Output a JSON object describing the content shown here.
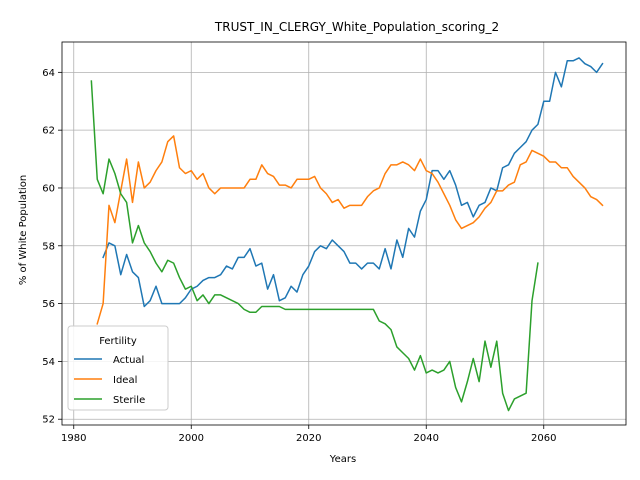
{
  "chart_data": {
    "type": "line",
    "title": "TRUST_IN_CLERGY_White_Population_scoring_2",
    "xlabel": "Years",
    "ylabel": "% of White Population",
    "xlim": [
      1978,
      2074
    ],
    "ylim": [
      51.8,
      65.05
    ],
    "xticks": [
      1980,
      2000,
      2020,
      2040,
      2060
    ],
    "yticks": [
      52,
      54,
      56,
      58,
      60,
      62,
      64
    ],
    "grid": true,
    "legend": {
      "title": "Fertility",
      "placement": "lower-left"
    },
    "series": [
      {
        "name": "Actual",
        "color": "#1f77b4",
        "x": [
          1985,
          1986,
          1987,
          1988,
          1989,
          1990,
          1991,
          1992,
          1993,
          1994,
          1995,
          1996,
          1997,
          1998,
          1999,
          2000,
          2001,
          2002,
          2003,
          2004,
          2005,
          2006,
          2007,
          2008,
          2009,
          2010,
          2011,
          2012,
          2013,
          2014,
          2015,
          2016,
          2017,
          2018,
          2019,
          2020,
          2021,
          2022,
          2023,
          2024,
          2025,
          2026,
          2027,
          2028,
          2029,
          2030,
          2031,
          2032,
          2033,
          2034,
          2035,
          2036,
          2037,
          2038,
          2039,
          2040,
          2041,
          2042,
          2043,
          2044,
          2045,
          2046,
          2047,
          2048,
          2049,
          2050,
          2051,
          2052,
          2053,
          2054,
          2055,
          2056,
          2057,
          2058,
          2059,
          2060,
          2061,
          2062,
          2063,
          2064,
          2065,
          2066,
          2067,
          2068,
          2069,
          2070
        ],
        "values": [
          57.6,
          58.1,
          58.0,
          57.0,
          57.7,
          57.1,
          56.9,
          55.9,
          56.1,
          56.6,
          56.0,
          56.0,
          56.0,
          56.0,
          56.2,
          56.5,
          56.6,
          56.8,
          56.9,
          56.9,
          57.0,
          57.3,
          57.2,
          57.6,
          57.6,
          57.9,
          57.3,
          57.4,
          56.5,
          57.0,
          56.1,
          56.2,
          56.6,
          56.4,
          57.0,
          57.3,
          57.8,
          58.0,
          57.9,
          58.2,
          58.0,
          57.8,
          57.4,
          57.4,
          57.2,
          57.4,
          57.4,
          57.2,
          57.9,
          57.2,
          58.2,
          57.6,
          58.6,
          58.3,
          59.2,
          59.6,
          60.6,
          60.6,
          60.3,
          60.6,
          60.1,
          59.4,
          59.5,
          59.0,
          59.4,
          59.5,
          60.0,
          59.9,
          60.7,
          60.8,
          61.2,
          61.4,
          61.6,
          62.0,
          62.2,
          63.0,
          63.0,
          64.0,
          63.5,
          64.4,
          64.4,
          64.5,
          64.3,
          64.2,
          64.0,
          64.3
        ]
      },
      {
        "name": "Ideal",
        "color": "#ff7f0e",
        "x": [
          1984,
          1985,
          1986,
          1987,
          1988,
          1989,
          1990,
          1991,
          1992,
          1993,
          1994,
          1995,
          1996,
          1997,
          1998,
          1999,
          2000,
          2001,
          2002,
          2003,
          2004,
          2005,
          2006,
          2007,
          2008,
          2009,
          2010,
          2011,
          2012,
          2013,
          2014,
          2015,
          2016,
          2017,
          2018,
          2019,
          2020,
          2021,
          2022,
          2023,
          2024,
          2025,
          2026,
          2027,
          2028,
          2029,
          2030,
          2031,
          2032,
          2033,
          2034,
          2035,
          2036,
          2037,
          2038,
          2039,
          2040,
          2041,
          2042,
          2043,
          2044,
          2045,
          2046,
          2047,
          2048,
          2049,
          2050,
          2051,
          2052,
          2053,
          2054,
          2055,
          2056,
          2057,
          2058,
          2059,
          2060,
          2061,
          2062,
          2063,
          2064,
          2065,
          2066,
          2067,
          2068,
          2069,
          2070
        ],
        "values": [
          55.3,
          56.0,
          59.4,
          58.8,
          59.9,
          61.0,
          59.5,
          60.9,
          60.0,
          60.2,
          60.6,
          60.9,
          61.6,
          61.8,
          60.7,
          60.5,
          60.6,
          60.3,
          60.5,
          60.0,
          59.8,
          60.0,
          60.0,
          60.0,
          60.0,
          60.0,
          60.3,
          60.3,
          60.8,
          60.5,
          60.4,
          60.1,
          60.1,
          60.0,
          60.3,
          60.3,
          60.3,
          60.4,
          60.0,
          59.8,
          59.5,
          59.6,
          59.3,
          59.4,
          59.4,
          59.4,
          59.7,
          59.9,
          60.0,
          60.5,
          60.8,
          60.8,
          60.9,
          60.8,
          60.6,
          61.0,
          60.6,
          60.5,
          60.2,
          59.8,
          59.4,
          58.9,
          58.6,
          58.7,
          58.8,
          59.0,
          59.3,
          59.5,
          59.9,
          59.9,
          60.1,
          60.2,
          60.8,
          60.9,
          61.3,
          61.2,
          61.1,
          60.9,
          60.9,
          60.7,
          60.7,
          60.4,
          60.2,
          60.0,
          59.7,
          59.6,
          59.4
        ]
      },
      {
        "name": "Sterile",
        "color": "#2ca02c",
        "x": [
          1983,
          1984,
          1985,
          1986,
          1987,
          1988,
          1989,
          1990,
          1991,
          1992,
          1993,
          1994,
          1995,
          1996,
          1997,
          1998,
          1999,
          2000,
          2001,
          2002,
          2003,
          2004,
          2005,
          2006,
          2007,
          2008,
          2009,
          2010,
          2011,
          2012,
          2013,
          2014,
          2015,
          2016,
          2017,
          2018,
          2019,
          2020,
          2021,
          2022,
          2023,
          2024,
          2025,
          2026,
          2027,
          2028,
          2029,
          2030,
          2031,
          2032,
          2033,
          2034,
          2035,
          2036,
          2037,
          2038,
          2039,
          2040,
          2041,
          2042,
          2043,
          2044,
          2045,
          2046,
          2047,
          2048,
          2049,
          2050,
          2051,
          2052,
          2053,
          2054,
          2055,
          2056,
          2057,
          2058,
          2059
        ],
        "values": [
          63.7,
          60.3,
          59.8,
          61.0,
          60.5,
          59.8,
          59.5,
          58.1,
          58.7,
          58.1,
          57.8,
          57.4,
          57.1,
          57.5,
          57.4,
          56.9,
          56.5,
          56.6,
          56.1,
          56.3,
          56.0,
          56.3,
          56.3,
          56.2,
          56.1,
          56.0,
          55.8,
          55.7,
          55.7,
          55.9,
          55.9,
          55.9,
          55.9,
          55.8,
          55.8,
          55.8,
          55.8,
          55.8,
          55.8,
          55.8,
          55.8,
          55.8,
          55.8,
          55.8,
          55.8,
          55.8,
          55.8,
          55.8,
          55.8,
          55.4,
          55.3,
          55.1,
          54.5,
          54.3,
          54.1,
          53.7,
          54.2,
          53.6,
          53.7,
          53.6,
          53.7,
          54.0,
          53.1,
          52.6,
          53.3,
          54.1,
          53.3,
          54.7,
          53.8,
          54.7,
          52.9,
          52.3,
          52.7,
          52.8,
          52.9,
          56.1,
          57.4
        ]
      }
    ]
  }
}
